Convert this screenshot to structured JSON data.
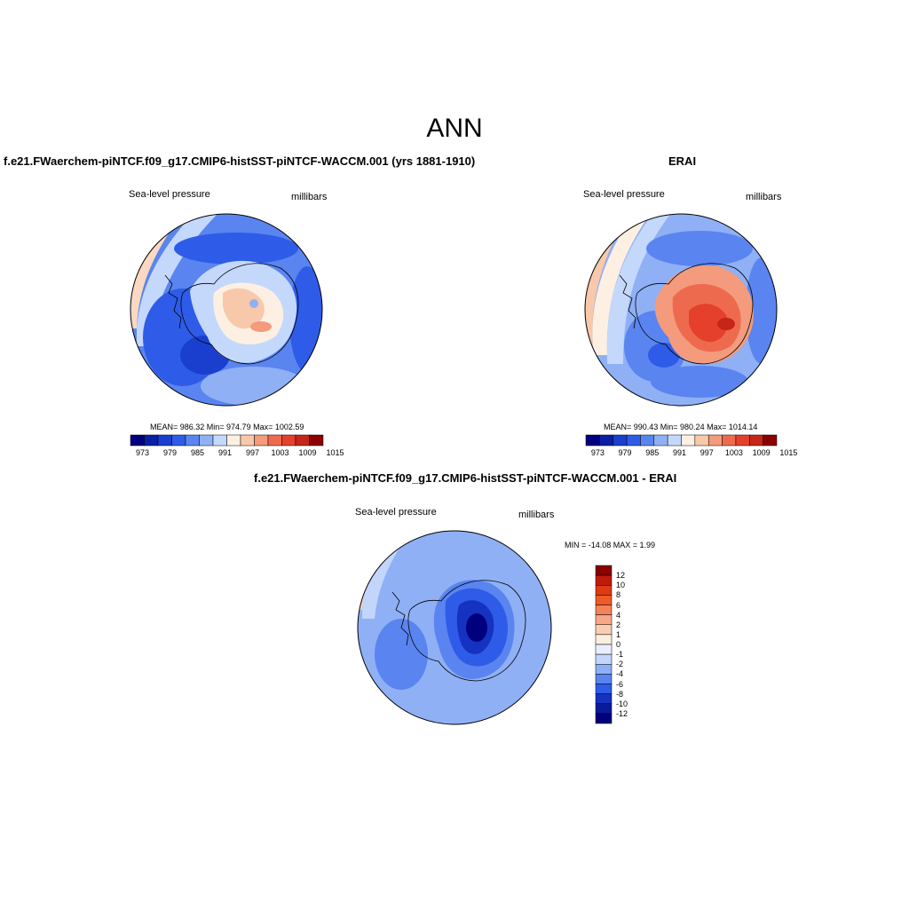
{
  "figure": {
    "title": "ANN"
  },
  "panels": {
    "model": {
      "title": "f.e21.FWaerchem-piNTCF.f09_g17.CMIP6-histSST-piNTCF-WACCM.001 (yrs 1881-1910)",
      "variable": "Sea-level pressure",
      "units": "millibars",
      "stats": "MEAN= 986.32  Min= 974.79  Max= 1002.59"
    },
    "obs": {
      "title": "ERAI",
      "variable": "Sea-level pressure",
      "units": "millibars",
      "stats": "MEAN= 990.43  Min= 980.24  Max= 1014.14"
    },
    "diff": {
      "title": "f.e21.FWaerchem-piNTCF.f09_g17.CMIP6-histSST-piNTCF-WACCM.001 - ERAI",
      "variable": "Sea-level pressure",
      "units": "millibars",
      "stats": "MIN = -14.08 MAX =   1.99"
    }
  },
  "colorbars": {
    "abs": {
      "labels": [
        "973",
        "979",
        "985",
        "991",
        "997",
        "1003",
        "1009",
        "1015"
      ],
      "colors": [
        "#00007f",
        "#0a1fa6",
        "#1a3fcf",
        "#2e5ce8",
        "#5a84f0",
        "#8fb0f5",
        "#c4d8fb",
        "#fdf0e2",
        "#f8c8ab",
        "#f39b7c",
        "#ee6a4e",
        "#e4402c",
        "#c8251a",
        "#8b0000"
      ]
    },
    "diff": {
      "labels": [
        "12",
        "10",
        "8",
        "6",
        "4",
        "2",
        "1",
        "0",
        "-1",
        "-2",
        "-4",
        "-6",
        "-8",
        "-10",
        "-12"
      ],
      "colors": [
        "#8b0000",
        "#c01a0a",
        "#de3a14",
        "#ef5a26",
        "#f4825a",
        "#f7a786",
        "#f9cdb4",
        "#fdeee0",
        "#e8eefc",
        "#c2d5fb",
        "#8fb0f5",
        "#5a84f0",
        "#2e5ce8",
        "#1532c0",
        "#0a1a9a",
        "#00007f"
      ]
    }
  }
}
